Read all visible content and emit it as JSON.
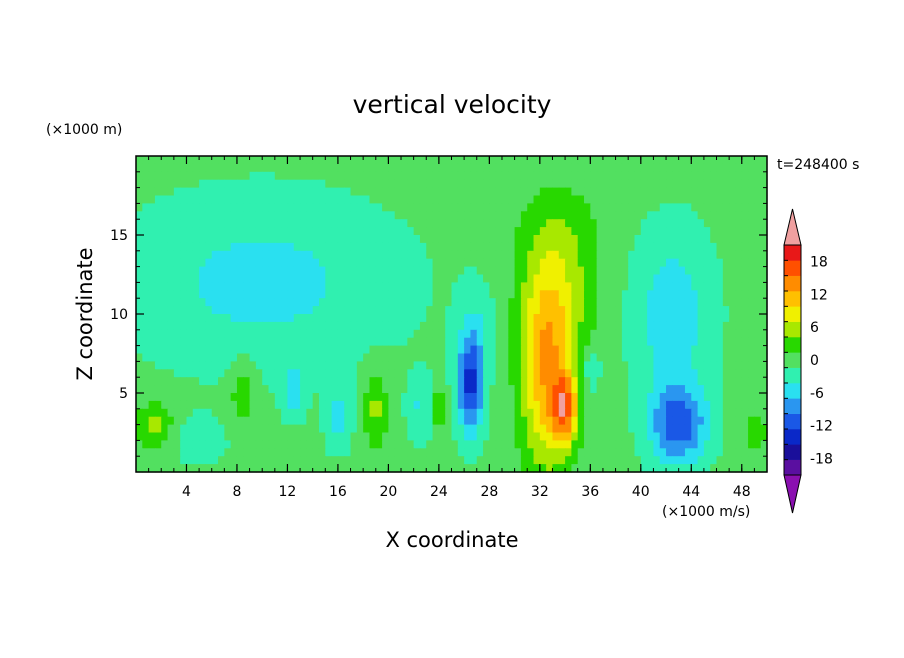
{
  "chart_data": {
    "type": "heatmap",
    "title": "vertical velocity",
    "xlabel": "X coordinate",
    "ylabel": "Z coordinate",
    "x_unit": "(×1000 m/s)",
    "y_unit": "(×1000 m)",
    "time_label": "t=248400 s",
    "xlim": [
      0,
      50
    ],
    "ylim": [
      0,
      20
    ],
    "x_ticks": [
      "4",
      "8",
      "12",
      "16",
      "20",
      "24",
      "28",
      "32",
      "36",
      "40",
      "44",
      "48"
    ],
    "y_ticks": [
      "5",
      "10",
      "15"
    ],
    "colorbar": {
      "levels": [
        -21,
        -18,
        -15,
        -12,
        -9,
        -6,
        -3,
        0,
        3,
        6,
        9,
        12,
        15,
        18,
        21
      ],
      "tick_labels": [
        "18",
        "12",
        "6",
        "0",
        "-6",
        "-12",
        "-18"
      ],
      "colors": [
        "#5a0fa0",
        "#1a0f9a",
        "#0a28c8",
        "#1a58e6",
        "#2a96f0",
        "#2ae0f0",
        "#30f0b0",
        "#52e060",
        "#28d800",
        "#a8e800",
        "#f0f000",
        "#ffc000",
        "#ff8c00",
        "#ff5000",
        "#e81818"
      ],
      "under_color": "#8a10b0",
      "over_color": "#f0a0a0"
    },
    "features": [
      {
        "x": 26.5,
        "z": 5.5,
        "value": -14,
        "sx": 1.0,
        "sz": 3.0
      },
      {
        "x": 32.5,
        "z": 6.0,
        "value": 13,
        "sx": 2.0,
        "sz": 6.0
      },
      {
        "x": 33.5,
        "z": 11.0,
        "value": 6,
        "sx": 3.0,
        "sz": 4.5
      },
      {
        "x": 33.5,
        "z": 15.5,
        "value": 3,
        "sx": 3.5,
        "sz": 3.0
      },
      {
        "x": 34.0,
        "z": 4.0,
        "value": 14,
        "sx": 1.0,
        "sz": 2.2
      },
      {
        "x": 43.0,
        "z": 3.0,
        "value": -12,
        "sx": 2.2,
        "sz": 2.5
      },
      {
        "x": 42.5,
        "z": 10.0,
        "value": -6,
        "sx": 3.0,
        "sz": 5.0
      },
      {
        "x": 36.0,
        "z": 6.5,
        "value": -4,
        "sx": 0.8,
        "sz": 1.5
      },
      {
        "x": 19.0,
        "z": 4.0,
        "value": 6,
        "sx": 0.9,
        "sz": 2.5
      },
      {
        "x": 8.5,
        "z": 5.0,
        "value": 5,
        "sx": 1.0,
        "sz": 2.0
      },
      {
        "x": 1.5,
        "z": 3.0,
        "value": 6,
        "sx": 1.5,
        "sz": 1.5
      },
      {
        "x": 49.0,
        "z": 2.5,
        "value": 4,
        "sx": 1.0,
        "sz": 1.5
      },
      {
        "x": 12.5,
        "z": 5.0,
        "value": -6,
        "sx": 0.8,
        "sz": 1.5
      },
      {
        "x": 16.0,
        "z": 3.5,
        "value": -5,
        "sx": 1.0,
        "sz": 2.0
      },
      {
        "x": 22.5,
        "z": 4.0,
        "value": -4,
        "sx": 1.0,
        "sz": 2.0
      },
      {
        "x": 24.0,
        "z": 4.0,
        "value": 7,
        "sx": 0.5,
        "sz": 1.0
      },
      {
        "x": 10.0,
        "z": 12.0,
        "value": -5,
        "sx": 10.0,
        "sz": 5.0
      },
      {
        "x": 27.0,
        "z": 9.0,
        "value": -3,
        "sx": 1.5,
        "sz": 3.0
      },
      {
        "x": 5.0,
        "z": 2.0,
        "value": -3,
        "sx": 2.0,
        "sz": 1.5
      }
    ]
  }
}
